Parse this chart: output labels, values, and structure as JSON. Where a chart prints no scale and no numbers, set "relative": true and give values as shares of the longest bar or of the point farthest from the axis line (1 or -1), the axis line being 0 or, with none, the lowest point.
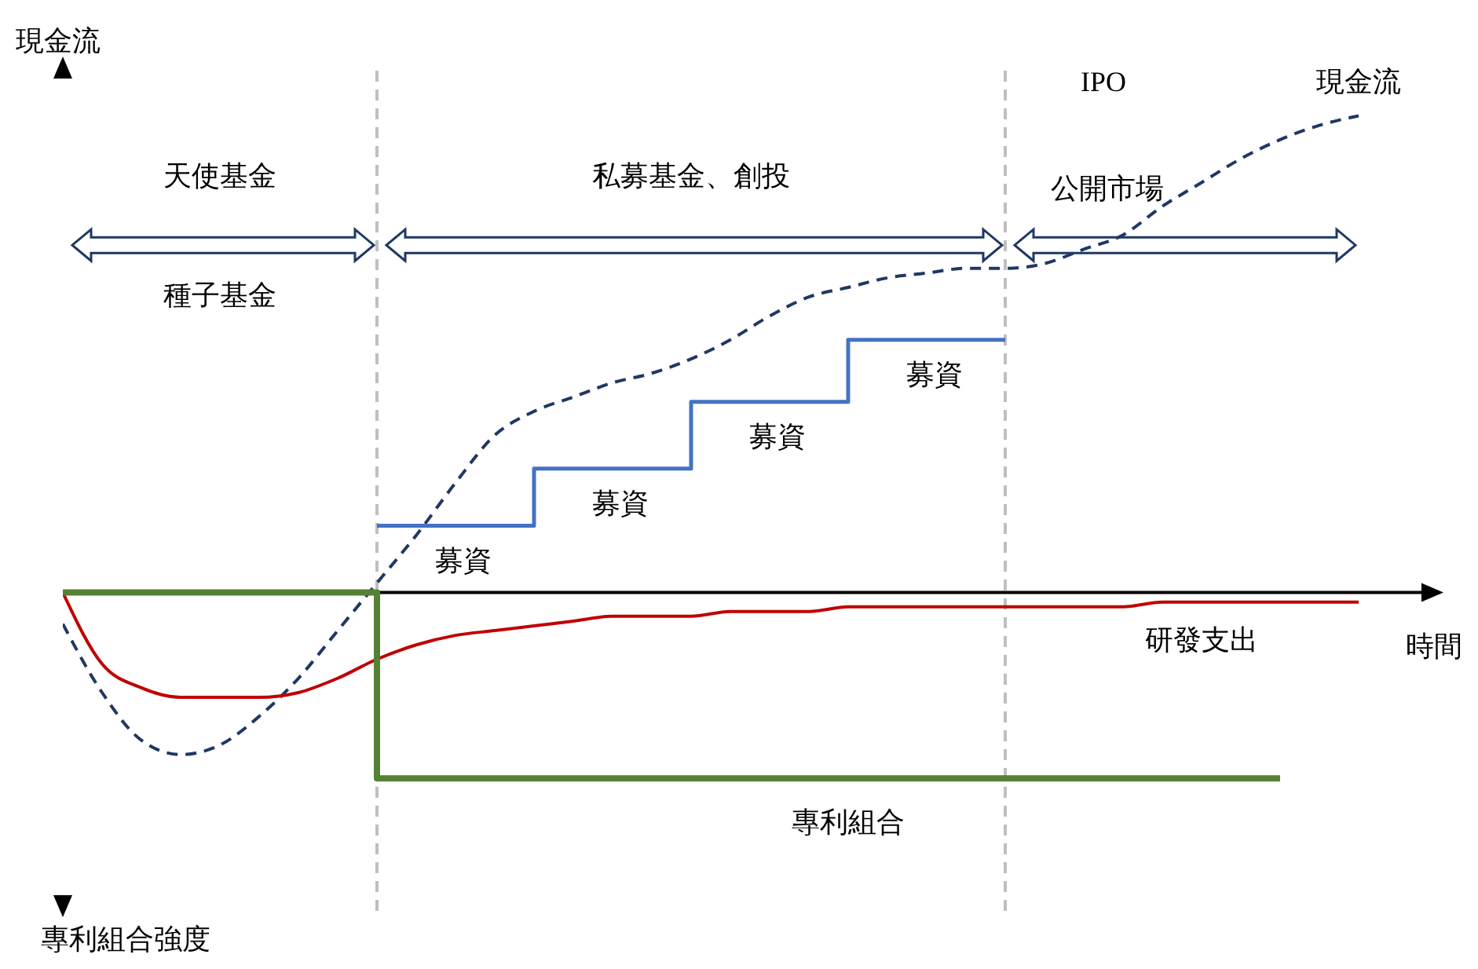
{
  "chart_data": {
    "type": "line",
    "relative": true,
    "xlabel": "時間",
    "ylabel": "現金流",
    "categories": [
      null,
      null,
      null,
      null,
      null,
      null,
      null,
      null,
      null,
      null,
      null,
      null,
      null,
      null,
      null,
      null,
      null,
      null,
      null,
      null,
      null,
      null,
      null,
      null,
      null,
      null,
      null,
      null,
      null,
      null,
      null,
      null,
      null,
      null,
      null
    ],
    "series": [
      {
        "name": "現金流",
        "type": "line",
        "line_style": "dashed",
        "color": "#1f3864",
        "values": [
          -0.066,
          -0.21,
          -0.31,
          -0.34,
          -0.32,
          -0.26,
          -0.18,
          -0.08,
          0.02,
          0.12,
          0.23,
          0.33,
          0.38,
          0.41,
          0.44,
          0.46,
          0.49,
          0.53,
          0.58,
          0.62,
          0.64,
          0.66,
          0.67,
          0.68,
          0.68,
          0.69,
          0.72,
          0.75,
          0.81,
          0.86,
          0.91,
          0.95,
          0.98,
          1.0,
          null
        ]
      },
      {
        "name": "研發支出",
        "type": "line",
        "color": "#c00000",
        "values": [
          0,
          -0.15,
          -0.2,
          -0.22,
          -0.22,
          -0.22,
          -0.21,
          -0.18,
          -0.14,
          -0.11,
          -0.09,
          -0.08,
          -0.07,
          -0.06,
          -0.05,
          -0.05,
          -0.05,
          -0.04,
          -0.04,
          -0.04,
          -0.03,
          -0.03,
          -0.03,
          -0.03,
          -0.03,
          -0.03,
          -0.03,
          -0.03,
          -0.02,
          -0.02,
          -0.02,
          -0.02,
          -0.02,
          -0.02,
          null
        ]
      },
      {
        "name": "專利組合",
        "type": "step",
        "color": "#548235",
        "values": [
          0,
          0,
          0,
          0,
          0,
          0,
          0,
          0,
          -0.39,
          -0.39,
          -0.39,
          -0.39,
          -0.39,
          -0.39,
          -0.39,
          -0.39,
          -0.39,
          -0.39,
          -0.39,
          -0.39,
          -0.39,
          -0.39,
          -0.39,
          -0.39,
          -0.39,
          -0.39,
          -0.39,
          -0.39,
          -0.39,
          -0.39,
          -0.39,
          -0.39,
          null,
          null,
          null
        ]
      },
      {
        "type": "step",
        "color": "#4472c4",
        "values": [
          null,
          null,
          null,
          null,
          null,
          null,
          null,
          null,
          0.14,
          0.14,
          0.14,
          0.14,
          0.26,
          0.26,
          0.26,
          0.26,
          0.4,
          0.4,
          0.4,
          0.4,
          0.53,
          0.53,
          0.53,
          0.53,
          0.53,
          null,
          null,
          null,
          null,
          null,
          null,
          null,
          null,
          null,
          null
        ]
      }
    ],
    "annotations": [
      "IPO",
      "天使基金",
      "種子基金",
      "私募基金、創投",
      "公開市場",
      "募資",
      "募資",
      "募資",
      "募資",
      "專利組合強度"
    ]
  }
}
